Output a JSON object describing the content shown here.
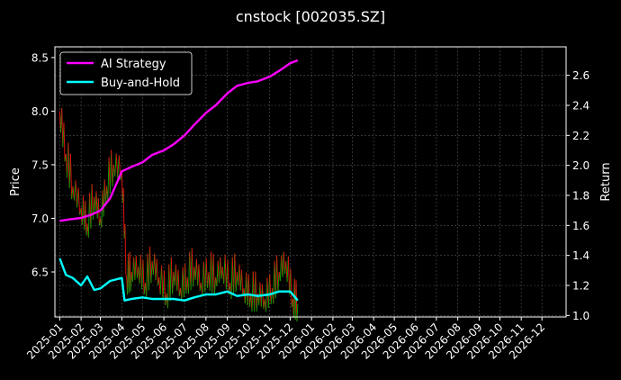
{
  "chart_data": {
    "type": "line",
    "title": "cnstock [002035.SZ]",
    "xlabel": "",
    "ylabel": "Price",
    "y2label": "Return",
    "x_ticks": [
      "2025-01",
      "2025-02",
      "2025-03",
      "2025-04",
      "2025-05",
      "2025-06",
      "2025-07",
      "2025-08",
      "2025-09",
      "2025-10",
      "2025-11",
      "2025-12",
      "2026-01",
      "2026-02",
      "2026-03",
      "2026-04",
      "2026-05",
      "2026-06",
      "2026-07",
      "2026-08",
      "2026-09",
      "2026-10",
      "2026-11",
      "2026-12"
    ],
    "ylim": [
      6.08,
      8.6
    ],
    "y_ticks": [
      6.5,
      7.0,
      7.5,
      8.0,
      8.5
    ],
    "y2lim": [
      0.99,
      2.79
    ],
    "y2_ticks": [
      1.0,
      1.2,
      1.4,
      1.6,
      1.8,
      2.0,
      2.2,
      2.4,
      2.6
    ],
    "grid": true,
    "legend_position": "top-left",
    "colors": {
      "background": "#000000",
      "ai_strategy": "#ff00ff",
      "buy_and_hold": "#00ffff",
      "price_up": "#00a000",
      "price_down": "#e01010",
      "grid": "#555555"
    },
    "price_series": {
      "dates": [
        "2025-01-01",
        "2025-01-10",
        "2025-01-20",
        "2025-02-01",
        "2025-02-10",
        "2025-02-20",
        "2025-03-01",
        "2025-03-10",
        "2025-03-20",
        "2025-04-01",
        "2025-04-08",
        "2025-04-15",
        "2025-04-25",
        "2025-05-05",
        "2025-05-15",
        "2025-05-25",
        "2025-06-05",
        "2025-06-15",
        "2025-06-25",
        "2025-07-05",
        "2025-07-15",
        "2025-07-25",
        "2025-08-05",
        "2025-08-15",
        "2025-08-25",
        "2025-09-05",
        "2025-09-15",
        "2025-09-25",
        "2025-10-05",
        "2025-10-15",
        "2025-10-25",
        "2025-11-05",
        "2025-11-15",
        "2025-11-25",
        "2025-12-05",
        "2025-12-12"
      ],
      "values": [
        8.0,
        7.6,
        7.3,
        7.1,
        6.95,
        7.2,
        7.0,
        7.3,
        7.5,
        7.45,
        6.45,
        6.5,
        6.55,
        6.4,
        6.6,
        6.45,
        6.3,
        6.5,
        6.35,
        6.45,
        6.55,
        6.4,
        6.5,
        6.45,
        6.55,
        6.4,
        6.5,
        6.35,
        6.3,
        6.3,
        6.25,
        6.35,
        6.5,
        6.6,
        6.25,
        6.2
      ]
    },
    "series": [
      {
        "name": "AI Strategy",
        "dates": [
          "2025-01-01",
          "2025-01-15",
          "2025-02-01",
          "2025-02-15",
          "2025-03-01",
          "2025-03-15",
          "2025-04-01",
          "2025-04-15",
          "2025-05-01",
          "2025-05-15",
          "2025-06-01",
          "2025-06-15",
          "2025-07-01",
          "2025-07-15",
          "2025-08-01",
          "2025-08-15",
          "2025-09-01",
          "2025-09-15",
          "2025-10-01",
          "2025-10-15",
          "2025-11-01",
          "2025-11-15",
          "2025-12-01",
          "2025-12-12"
        ],
        "values": [
          1.63,
          1.64,
          1.65,
          1.67,
          1.7,
          1.78,
          1.96,
          1.99,
          2.02,
          2.07,
          2.1,
          2.14,
          2.2,
          2.27,
          2.35,
          2.4,
          2.48,
          2.53,
          2.55,
          2.56,
          2.59,
          2.63,
          2.68,
          2.7
        ]
      },
      {
        "name": "Buy-and-Hold",
        "dates": [
          "2025-01-01",
          "2025-01-10",
          "2025-01-20",
          "2025-02-01",
          "2025-02-10",
          "2025-02-20",
          "2025-03-01",
          "2025-03-15",
          "2025-04-01",
          "2025-04-05",
          "2025-04-15",
          "2025-05-01",
          "2025-05-15",
          "2025-06-01",
          "2025-06-15",
          "2025-07-01",
          "2025-07-15",
          "2025-08-01",
          "2025-08-15",
          "2025-09-01",
          "2025-09-15",
          "2025-10-01",
          "2025-10-15",
          "2025-11-01",
          "2025-11-15",
          "2025-12-01",
          "2025-12-12"
        ],
        "values": [
          1.38,
          1.27,
          1.25,
          1.2,
          1.26,
          1.17,
          1.18,
          1.23,
          1.25,
          1.1,
          1.11,
          1.12,
          1.11,
          1.11,
          1.11,
          1.1,
          1.12,
          1.14,
          1.14,
          1.16,
          1.13,
          1.14,
          1.13,
          1.14,
          1.16,
          1.16,
          1.1
        ]
      }
    ]
  }
}
